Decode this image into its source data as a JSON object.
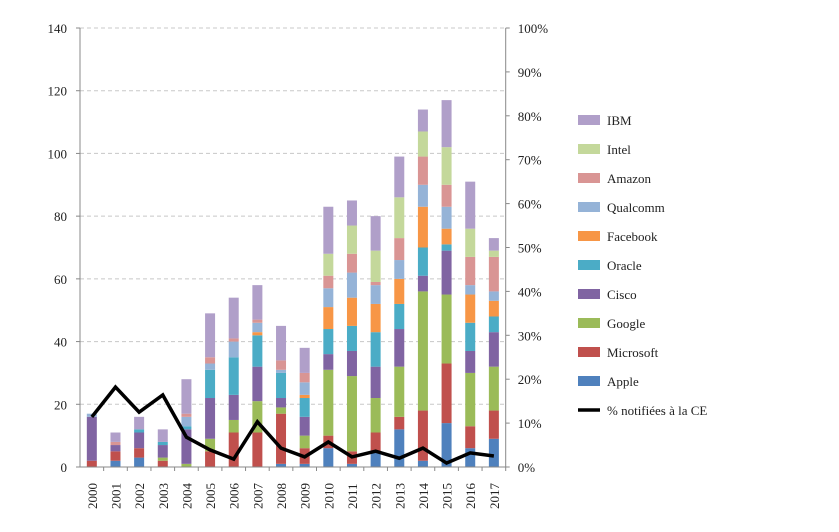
{
  "chart_data": {
    "type": "bar",
    "stacked": true,
    "title": "",
    "xlabel": "",
    "ylabel": "",
    "ylim": [
      0,
      140
    ],
    "y_ticks": [
      0,
      20,
      40,
      60,
      80,
      100,
      120,
      140
    ],
    "y2lim": [
      0,
      100
    ],
    "y2_ticks": [
      "0%",
      "10%",
      "20%",
      "30%",
      "40%",
      "50%",
      "60%",
      "70%",
      "80%",
      "90%",
      "100%"
    ],
    "grid": true,
    "legend_position": "right",
    "categories": [
      "2000",
      "2001",
      "2002",
      "2003",
      "2004",
      "2005",
      "2006",
      "2007",
      "2008",
      "2009",
      "2010",
      "2011",
      "2012",
      "2013",
      "2014",
      "2015",
      "2016",
      "2017"
    ],
    "series": [
      {
        "name": "Apple",
        "color": "#4f81bd",
        "values": [
          0,
          2,
          3,
          0,
          0,
          0,
          0,
          0,
          1,
          1,
          6,
          1,
          5,
          12,
          2,
          14,
          6,
          9
        ]
      },
      {
        "name": "Microsoft",
        "color": "#c0504d",
        "values": [
          2,
          3,
          3,
          2,
          0,
          5,
          11,
          11,
          16,
          5,
          4,
          4,
          6,
          4,
          16,
          19,
          7,
          9
        ]
      },
      {
        "name": "Google",
        "color": "#9bbb59",
        "values": [
          0,
          0,
          0,
          1,
          1,
          4,
          4,
          10,
          2,
          4,
          21,
          24,
          11,
          16,
          38,
          22,
          17,
          14
        ]
      },
      {
        "name": "Cisco",
        "color": "#8064a2",
        "values": [
          14,
          2,
          5,
          4,
          11,
          13,
          8,
          11,
          3,
          6,
          5,
          8,
          10,
          12,
          5,
          14,
          7,
          11
        ]
      },
      {
        "name": "Oracle",
        "color": "#4bacc6",
        "values": [
          0,
          0,
          1,
          1,
          1,
          9,
          12,
          10,
          8,
          6,
          8,
          8,
          11,
          8,
          9,
          2,
          9,
          5
        ]
      },
      {
        "name": "Facebook",
        "color": "#f79646",
        "values": [
          0,
          0,
          0,
          0,
          0,
          0,
          0,
          1,
          0,
          1,
          7,
          9,
          9,
          8,
          13,
          5,
          9,
          5
        ]
      },
      {
        "name": "Qualcomm",
        "color": "#95b3d7",
        "values": [
          1,
          0,
          0,
          0,
          3,
          2,
          5,
          3,
          1,
          4,
          6,
          8,
          6,
          6,
          7,
          7,
          3,
          3
        ]
      },
      {
        "name": "Amazon",
        "color": "#d99594",
        "values": [
          0,
          1,
          0,
          0,
          1,
          2,
          1,
          1,
          3,
          3,
          4,
          6,
          1,
          7,
          9,
          7,
          9,
          11
        ]
      },
      {
        "name": "Intel",
        "color": "#c4d89b",
        "values": [
          0,
          0,
          0,
          0,
          0,
          0,
          0,
          0,
          0,
          0,
          7,
          9,
          10,
          13,
          8,
          12,
          9,
          2
        ]
      },
      {
        "name": "IBM",
        "color": "#b09fc9",
        "values": [
          0,
          3,
          4,
          4,
          11,
          14,
          13,
          11,
          11,
          8,
          15,
          8,
          11,
          13,
          7,
          15,
          15,
          4
        ]
      }
    ],
    "line_series": {
      "name": "% notifiées à la CE",
      "color": "#000000",
      "axis": "right",
      "values_percent": [
        11.4,
        18.2,
        12.5,
        16.4,
        6.8,
        3.9,
        1.8,
        10.3,
        4.3,
        2.3,
        5.7,
        2.3,
        3.6,
        2.0,
        4.3,
        0.9,
        3.2,
        2.5
      ]
    }
  }
}
